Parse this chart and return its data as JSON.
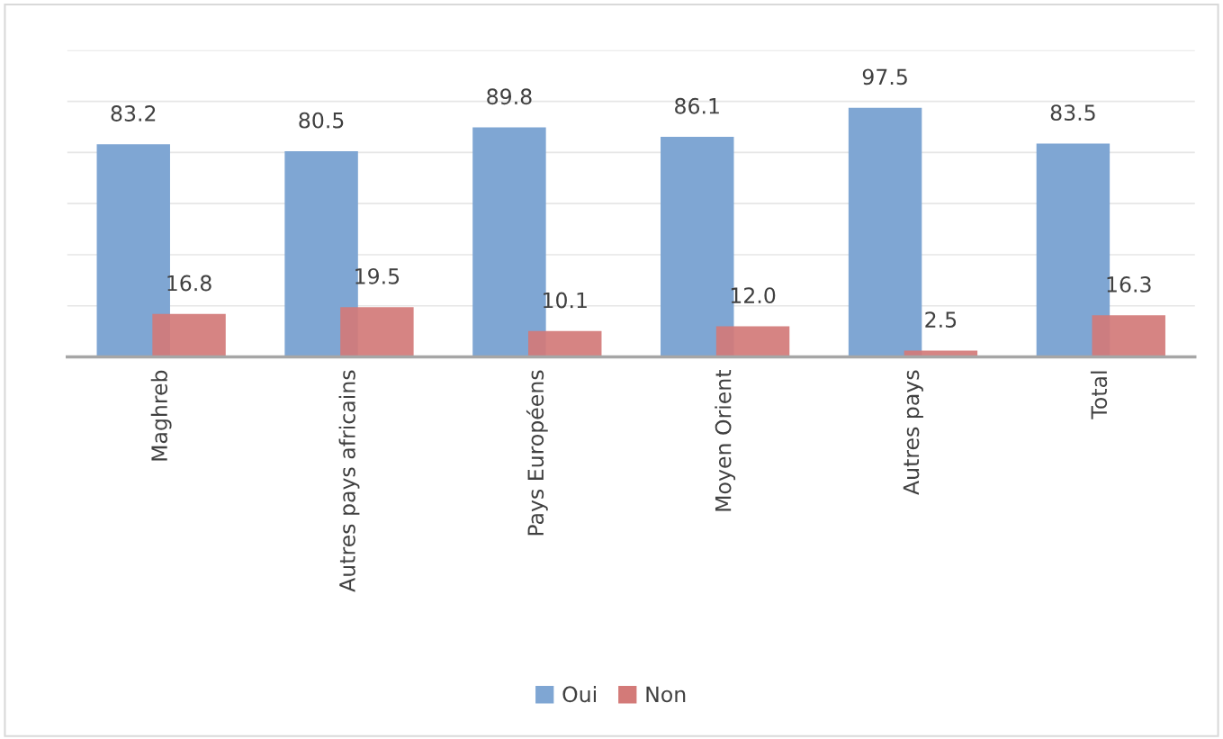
{
  "chart_data": {
    "type": "bar",
    "categories": [
      "Maghreb",
      "Autres pays africains",
      "Pays Européens",
      "Moyen Orient",
      "Autres pays",
      "Total"
    ],
    "series": [
      {
        "name": "Oui",
        "color": "#7fa6d3",
        "values": [
          83.2,
          80.5,
          89.8,
          86.1,
          97.5,
          83.5
        ],
        "value_labels": [
          "83.2",
          "80.5",
          "89.8",
          "86.1",
          "97.5",
          "83.5"
        ]
      },
      {
        "name": "Non",
        "color": "#d37a78",
        "values": [
          16.8,
          19.5,
          10.1,
          12.0,
          2.5,
          16.3
        ],
        "value_labels": [
          "16.8",
          "19.5",
          "10.1",
          "12.0",
          "2.5",
          "16.3"
        ]
      }
    ],
    "ylim": [
      0,
      120
    ],
    "yticks": [
      {
        "value": 0,
        "label": null
      },
      {
        "value": 20,
        "label": null
      },
      {
        "value": 40,
        "label": null
      },
      {
        "value": 60,
        "label": null
      },
      {
        "value": 80,
        "label": null
      },
      {
        "value": 100,
        "label": null
      },
      {
        "value": 120,
        "label": null
      }
    ],
    "grid": "y",
    "legend": "bottom",
    "tick_labels": "x"
  }
}
